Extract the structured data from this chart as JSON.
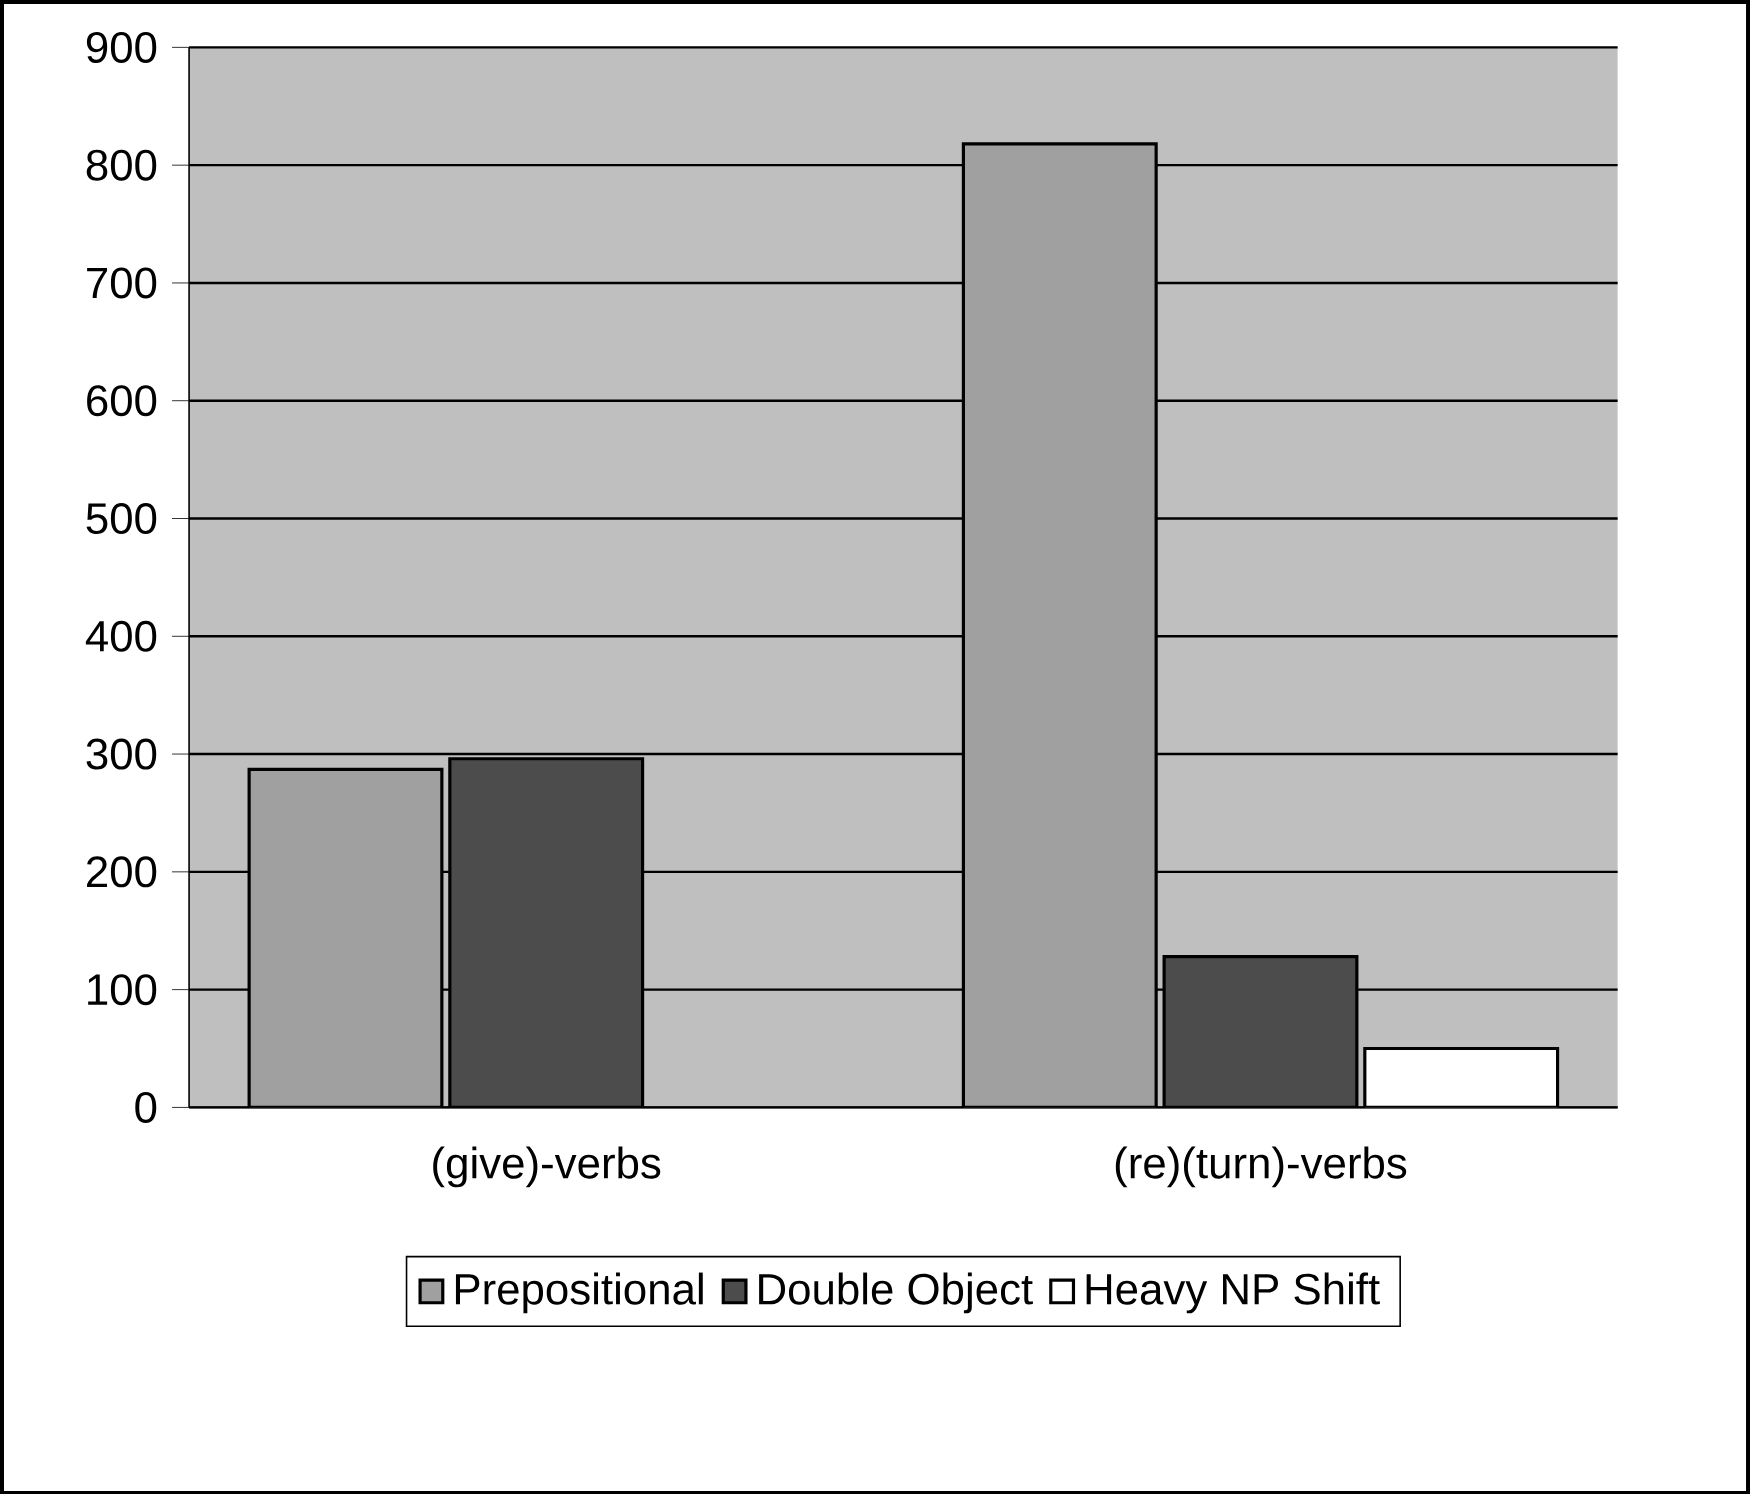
{
  "chart_data": {
    "type": "bar",
    "categories": [
      "(give)-verbs",
      "(re)(turn)-verbs"
    ],
    "series": [
      {
        "name": "Prepositional",
        "color": "#a0a0a0",
        "values": [
          287,
          818
        ]
      },
      {
        "name": "Double Object",
        "color": "#4c4c4c",
        "values": [
          296,
          128
        ]
      },
      {
        "name": "Heavy NP Shift",
        "color": "#ffffff",
        "values": [
          null,
          50
        ]
      }
    ],
    "ylim": [
      0,
      900
    ],
    "yticks": [
      0,
      100,
      200,
      300,
      400,
      500,
      600,
      700,
      800,
      900
    ],
    "grid": "y",
    "legend": "bottom"
  }
}
